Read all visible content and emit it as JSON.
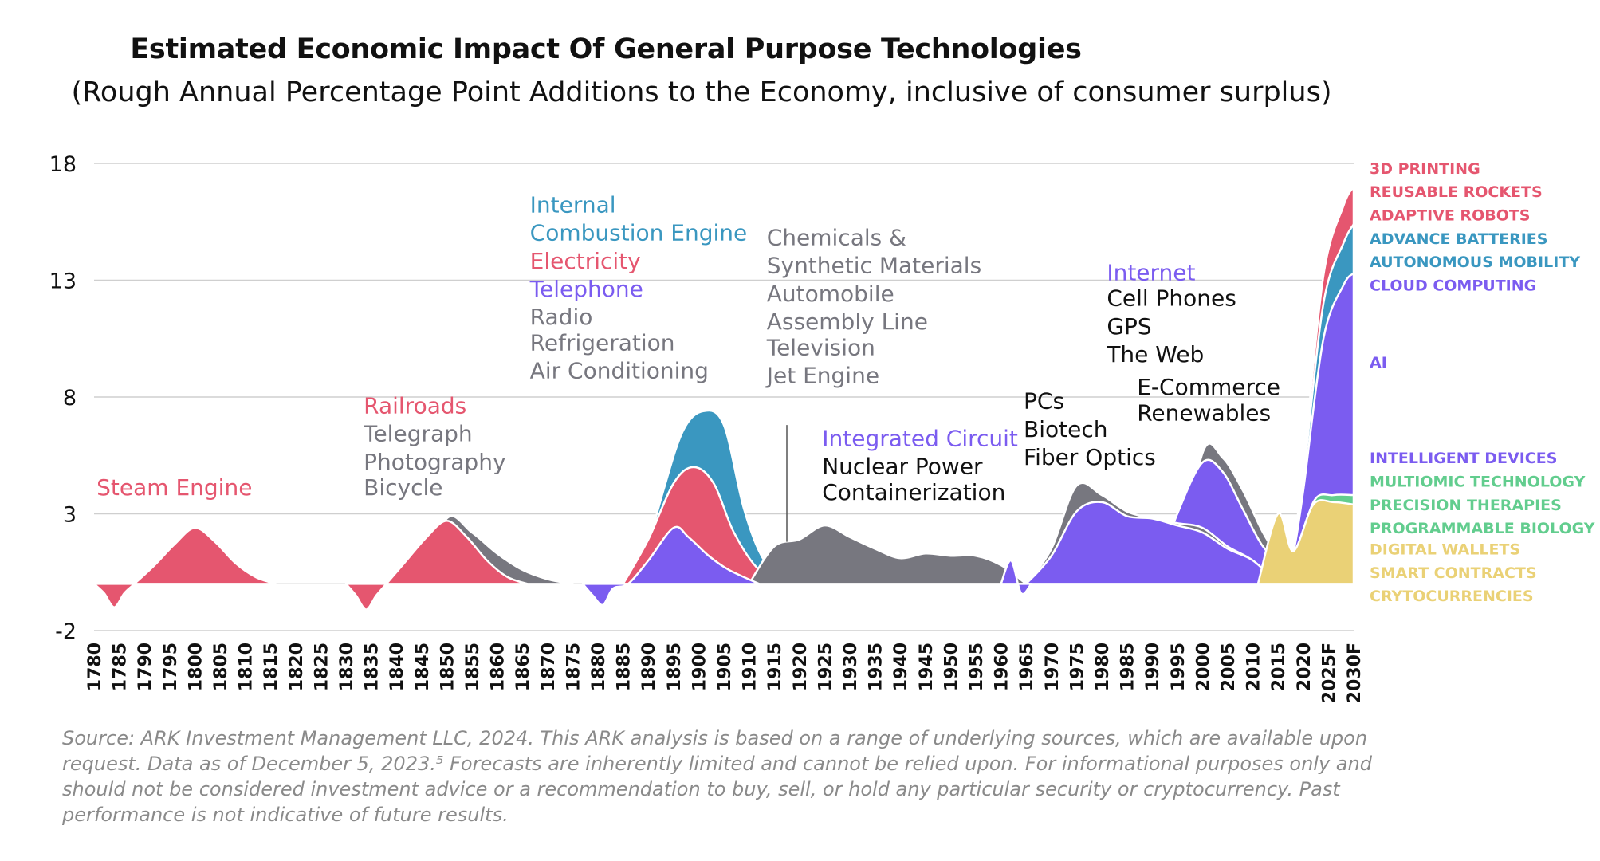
{
  "chart_data": {
    "type": "area",
    "title": "Estimated Economic Impact Of General Purpose Technologies",
    "subtitle": "(Rough Annual Percentage Point Additions to the Economy, inclusive of consumer surplus)",
    "ylim": [
      -2,
      18
    ],
    "yticks": [
      "18",
      "13",
      "8",
      "3",
      "-2"
    ],
    "xticks": [
      "1780",
      "1785",
      "1790",
      "1795",
      "1800",
      "1805",
      "1810",
      "1815",
      "1820",
      "1825",
      "1830",
      "1835",
      "1840",
      "1845",
      "1850",
      "1855",
      "1860",
      "1865",
      "1870",
      "1875",
      "1880",
      "1885",
      "1890",
      "1895",
      "1900",
      "1905",
      "1910",
      "1915",
      "1920",
      "1925",
      "1930",
      "1935",
      "1940",
      "1945",
      "1950",
      "1955",
      "1960",
      "1965",
      "1970",
      "1975",
      "1980",
      "1985",
      "1990",
      "1995",
      "2000",
      "2005",
      "2010",
      "2015",
      "2020",
      "2025F",
      "2030F"
    ],
    "colors": {
      "pink": "#e5566f",
      "blue": "#3a97c0",
      "purple": "#7b5cf0",
      "gray": "#77777f",
      "green": "#62cd8e",
      "yellow": "#ead176",
      "black": "#111111"
    },
    "series": [
      {
        "name": "Steam Engine",
        "color": "pink",
        "points": [
          [
            1780,
            0
          ],
          [
            1782,
            -0.4
          ],
          [
            1784,
            -1.0
          ],
          [
            1786,
            -0.4
          ],
          [
            1788,
            0
          ],
          [
            1792,
            0.8
          ],
          [
            1796,
            1.7
          ],
          [
            1800,
            2.4
          ],
          [
            1804,
            1.8
          ],
          [
            1808,
            0.9
          ],
          [
            1812,
            0.3
          ],
          [
            1816,
            0
          ]
        ]
      },
      {
        "name": "Railroads",
        "color": "pink",
        "points": [
          [
            1830,
            0
          ],
          [
            1832,
            -0.5
          ],
          [
            1834,
            -1.1
          ],
          [
            1836,
            -0.5
          ],
          [
            1838,
            0
          ],
          [
            1842,
            1.0
          ],
          [
            1846,
            2.0
          ],
          [
            1850,
            2.7
          ],
          [
            1854,
            2.0
          ],
          [
            1858,
            1.0
          ],
          [
            1862,
            0.3
          ],
          [
            1866,
            0
          ]
        ]
      },
      {
        "name": "Telegraph / Photography / Bicycle",
        "color": "gray",
        "points": [
          [
            1845,
            0
          ],
          [
            1850,
            2.8
          ],
          [
            1855,
            2.2
          ],
          [
            1860,
            1.3
          ],
          [
            1865,
            0.6
          ],
          [
            1870,
            0.2
          ],
          [
            1875,
            0
          ]
        ]
      },
      {
        "name": "Telephone",
        "color": "purple",
        "points": [
          [
            1877,
            0
          ],
          [
            1879,
            -0.5
          ],
          [
            1881,
            -0.9
          ],
          [
            1883,
            -0.2
          ],
          [
            1886,
            0
          ],
          [
            1890,
            1.0
          ],
          [
            1895,
            2.4
          ],
          [
            1898,
            2.0
          ],
          [
            1902,
            1.2
          ],
          [
            1906,
            0.6
          ],
          [
            1912,
            0
          ]
        ]
      },
      {
        "name": "Electricity",
        "color": "pink",
        "points": [
          [
            1885,
            0
          ],
          [
            1890,
            1.9
          ],
          [
            1895,
            4.3
          ],
          [
            1899,
            5.0
          ],
          [
            1903,
            4.3
          ],
          [
            1907,
            2.2
          ],
          [
            1912,
            0.6
          ],
          [
            1918,
            0
          ]
        ]
      },
      {
        "name": "Internal Combustion Engine",
        "color": "blue",
        "points": [
          [
            1888,
            0
          ],
          [
            1893,
            4.0
          ],
          [
            1897,
            6.6
          ],
          [
            1901,
            7.4
          ],
          [
            1905,
            6.8
          ],
          [
            1909,
            3.2
          ],
          [
            1913,
            1.0
          ],
          [
            1918,
            0
          ]
        ]
      },
      {
        "name": "Chemicals / Automobile / Television",
        "color": "gray",
        "points": [
          [
            1910,
            0
          ],
          [
            1915,
            1.6
          ],
          [
            1920,
            1.9
          ],
          [
            1925,
            2.5
          ],
          [
            1930,
            2.0
          ],
          [
            1935,
            1.5
          ],
          [
            1940,
            1.1
          ],
          [
            1945,
            1.3
          ],
          [
            1950,
            1.2
          ],
          [
            1955,
            1.2
          ],
          [
            1960,
            0.8
          ],
          [
            1965,
            0
          ]
        ]
      },
      {
        "name": "Integrated Circuit",
        "color": "purple",
        "points": [
          [
            1960,
            0
          ],
          [
            1962,
            1.0
          ],
          [
            1964,
            -0.4
          ],
          [
            1966,
            0
          ]
        ]
      },
      {
        "name": "PCs / Biotech / Fiber Optics",
        "color": "purple",
        "points": [
          [
            1965,
            0
          ],
          [
            1970,
            1.2
          ],
          [
            1975,
            3.1
          ],
          [
            1980,
            3.5
          ],
          [
            1985,
            2.9
          ],
          [
            1990,
            2.8
          ],
          [
            1995,
            2.5
          ],
          [
            2000,
            2.2
          ],
          [
            2005,
            1.5
          ],
          [
            2010,
            1.0
          ],
          [
            2015,
            0
          ]
        ]
      },
      {
        "name": "Nuclear Power / Containerization",
        "color": "gray",
        "points": [
          [
            1965,
            0
          ],
          [
            1970,
            1.5
          ],
          [
            1975,
            4.2
          ],
          [
            1980,
            3.8
          ],
          [
            1985,
            3.1
          ],
          [
            1990,
            2.8
          ],
          [
            1995,
            2.6
          ],
          [
            2000,
            2.4
          ],
          [
            2005,
            1.6
          ],
          [
            2010,
            1.0
          ],
          [
            2015,
            0
          ]
        ]
      },
      {
        "name": "Internet / Cell Phones / GPS / The Web",
        "color": "purple",
        "points": [
          [
            1990,
            0
          ],
          [
            1995,
            3.0
          ],
          [
            2000,
            5.2
          ],
          [
            2004,
            4.8
          ],
          [
            2008,
            3.2
          ],
          [
            2012,
            1.6
          ],
          [
            2016,
            0.8
          ],
          [
            2018,
            0
          ]
        ]
      },
      {
        "name": "E-Commerce / Renewables",
        "color": "gray",
        "points": [
          [
            1995,
            0
          ],
          [
            2000,
            5.6
          ],
          [
            2004,
            5.4
          ],
          [
            2008,
            4.0
          ],
          [
            2012,
            2.2
          ],
          [
            2016,
            0.8
          ],
          [
            2018,
            0
          ]
        ]
      },
      {
        "name": "Crypto / Digital Wallets / Smart Contracts",
        "color": "yellow",
        "points": [
          [
            2011,
            0
          ],
          [
            2015,
            3.0
          ],
          [
            2018,
            1.4
          ],
          [
            2022,
            3.4
          ],
          [
            2026,
            3.5
          ],
          [
            2030,
            3.4
          ]
        ]
      },
      {
        "name": "Multiomic / Precision Therapies / Programmable Biology",
        "color": "green",
        "points": [
          [
            2015,
            0
          ],
          [
            2018,
            0.6
          ],
          [
            2022,
            3.5
          ],
          [
            2026,
            3.8
          ],
          [
            2030,
            3.8
          ]
        ]
      },
      {
        "name": "AI / Intelligent Devices",
        "color": "purple",
        "points": [
          [
            2016,
            0
          ],
          [
            2018,
            1.3
          ],
          [
            2020,
            4.0
          ],
          [
            2024,
            10.5
          ],
          [
            2028,
            12.8
          ],
          [
            2030,
            13.3
          ]
        ]
      },
      {
        "name": "Batteries / Autonomous Mobility / Cloud",
        "color": "blue",
        "points": [
          [
            2016,
            0
          ],
          [
            2018,
            1.5
          ],
          [
            2020,
            4.5
          ],
          [
            2024,
            12.0
          ],
          [
            2028,
            14.6
          ],
          [
            2030,
            15.4
          ]
        ]
      },
      {
        "name": "3D Printing / Rockets / Robots",
        "color": "pink",
        "points": [
          [
            2016,
            0
          ],
          [
            2018,
            1.6
          ],
          [
            2020,
            5.0
          ],
          [
            2024,
            13.2
          ],
          [
            2028,
            16.2
          ],
          [
            2030,
            17.0
          ]
        ]
      }
    ],
    "annotations": [
      {
        "text": "Steam Engine",
        "color": "pink",
        "x": 1780.5,
        "y": 3.8
      },
      {
        "text": "Railroads",
        "color": "pink",
        "x": 1833.5,
        "y": 7.3
      },
      {
        "text": "Telegraph",
        "color": "gray",
        "x": 1833.5,
        "y": 6.1
      },
      {
        "text": "Photography",
        "color": "gray",
        "x": 1833.5,
        "y": 4.9
      },
      {
        "text": "Bicycle",
        "color": "gray",
        "x": 1833.5,
        "y": 3.8
      },
      {
        "text": "Internal",
        "color": "blue",
        "x": 1866.5,
        "y": 15.9
      },
      {
        "text": "Combustion Engine",
        "color": "blue",
        "x": 1866.5,
        "y": 14.7
      },
      {
        "text": "Electricity",
        "color": "pink",
        "x": 1866.5,
        "y": 13.5
      },
      {
        "text": "Telephone",
        "color": "purple",
        "x": 1866.5,
        "y": 12.3
      },
      {
        "text": "Radio",
        "color": "gray",
        "x": 1866.5,
        "y": 11.1
      },
      {
        "text": "Refrigeration",
        "color": "gray",
        "x": 1866.5,
        "y": 10.0
      },
      {
        "text": "Air Conditioning",
        "color": "gray",
        "x": 1866.5,
        "y": 8.8
      },
      {
        "text": "Chemicals &",
        "color": "gray",
        "x": 1913.5,
        "y": 14.5
      },
      {
        "text": "Synthetic Materials",
        "color": "gray",
        "x": 1913.5,
        "y": 13.3
      },
      {
        "text": "Automobile",
        "color": "gray",
        "x": 1913.5,
        "y": 12.1
      },
      {
        "text": "Assembly Line",
        "color": "gray",
        "x": 1913.5,
        "y": 10.9
      },
      {
        "text": "Television",
        "color": "gray",
        "x": 1913.5,
        "y": 9.8
      },
      {
        "text": "Jet Engine",
        "color": "gray",
        "x": 1913.5,
        "y": 8.6
      },
      {
        "text": "Integrated Circuit",
        "color": "purple",
        "x": 1924.5,
        "y": 5.9
      },
      {
        "text": "Nuclear Power",
        "color": "black",
        "x": 1924.5,
        "y": 4.7
      },
      {
        "text": "Containerization",
        "color": "black",
        "x": 1924.5,
        "y": 3.6
      },
      {
        "text": "PCs",
        "color": "black",
        "x": 1964.5,
        "y": 7.5
      },
      {
        "text": "Biotech",
        "color": "black",
        "x": 1964.5,
        "y": 6.3
      },
      {
        "text": "Fiber Optics",
        "color": "black",
        "x": 1964.5,
        "y": 5.1
      },
      {
        "text": "Internet",
        "color": "purple",
        "x": 1981.0,
        "y": 13.0
      },
      {
        "text": "Cell Phones",
        "color": "black",
        "x": 1981.0,
        "y": 11.9
      },
      {
        "text": "GPS",
        "color": "black",
        "x": 1981.0,
        "y": 10.7
      },
      {
        "text": "The Web",
        "color": "black",
        "x": 1981.0,
        "y": 9.5
      },
      {
        "text": "E-Commerce",
        "color": "black",
        "x": 1987.0,
        "y": 8.1
      },
      {
        "text": "Renewables",
        "color": "black",
        "x": 1987.0,
        "y": 7.0
      }
    ],
    "legend": [
      {
        "text": "3D PRINTING",
        "color": "pink",
        "y": 17.8
      },
      {
        "text": "REUSABLE ROCKETS",
        "color": "pink",
        "y": 16.8
      },
      {
        "text": "ADAPTIVE ROBOTS",
        "color": "pink",
        "y": 15.8
      },
      {
        "text": "ADVANCE BATTERIES",
        "color": "blue",
        "y": 14.8
      },
      {
        "text": "AUTONOMOUS MOBILITY",
        "color": "blue",
        "y": 13.8
      },
      {
        "text": "CLOUD COMPUTING",
        "color": "purple",
        "y": 12.8
      },
      {
        "text": "AI",
        "color": "purple",
        "y": 9.5
      },
      {
        "text": "INTELLIGENT DEVICES",
        "color": "purple",
        "y": 5.4
      },
      {
        "text": "MULTIOMIC TECHNOLOGY",
        "color": "green",
        "y": 4.4
      },
      {
        "text": "PRECISION THERAPIES",
        "color": "green",
        "y": 3.4
      },
      {
        "text": "PROGRAMMABLE BIOLOGY",
        "color": "green",
        "y": 2.4
      },
      {
        "text": "DIGITAL WALLETS",
        "color": "yellow",
        "y": 1.5
      },
      {
        "text": "SMART CONTRACTS",
        "color": "yellow",
        "y": 0.5
      },
      {
        "text": "CRYTOCURRENCIES",
        "color": "yellow",
        "y": -0.5
      }
    ]
  },
  "source_text": "Source: ARK Investment Management LLC, 2024. This ARK analysis is based on a range of underlying sources, which are available upon request. Data as of December 5, 2023.⁵  Forecasts are inherently limited and cannot be relied upon. For informational purposes only and should not be considered investment advice or a recommendation to buy, sell, or hold any particular security or cryptocurrency. Past performance is not indicative of future results."
}
